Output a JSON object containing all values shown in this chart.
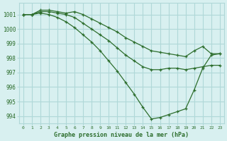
{
  "title": "Graphe pression niveau de la mer (hPa)",
  "bg_color": "#d8f0f0",
  "grid_color": "#b0d8d8",
  "line_color": "#2d6e2d",
  "marker_color": "#2d6e2d",
  "ylim": [
    993.5,
    1001.8
  ],
  "yticks": [
    994,
    995,
    996,
    997,
    998,
    999,
    1000,
    1001
  ],
  "xlim": [
    -0.5,
    23.5
  ],
  "xticks": [
    0,
    1,
    2,
    3,
    4,
    5,
    6,
    7,
    8,
    9,
    10,
    11,
    12,
    13,
    14,
    15,
    16,
    17,
    18,
    19,
    20,
    21,
    22,
    23
  ],
  "series": [
    {
      "x": [
        0,
        1,
        2,
        3,
        4,
        5,
        6,
        7,
        8,
        9,
        10,
        11,
        12,
        13,
        14,
        15,
        16,
        17,
        18,
        19,
        20,
        21,
        22,
        23
      ],
      "y": [
        1001.0,
        1001.0,
        1001.3,
        1001.3,
        1001.2,
        1001.1,
        1001.2,
        1001.0,
        1000.7,
        1000.4,
        1000.1,
        999.8,
        999.4,
        999.1,
        998.8,
        998.5,
        998.4,
        998.3,
        998.2,
        998.1,
        998.5,
        998.8,
        998.3,
        998.3
      ]
    },
    {
      "x": [
        0,
        1,
        2,
        3,
        4,
        5,
        6,
        7,
        8,
        9,
        10,
        11,
        12,
        13,
        14,
        15,
        16,
        17,
        18,
        19,
        20,
        21,
        22,
        23
      ],
      "y": [
        1001.0,
        1001.0,
        1001.2,
        1001.2,
        1001.1,
        1001.0,
        1000.8,
        1000.4,
        1000.0,
        999.6,
        999.2,
        998.7,
        998.2,
        997.8,
        997.4,
        997.2,
        997.2,
        997.3,
        997.3,
        997.2,
        997.3,
        997.4,
        997.5,
        997.5
      ]
    },
    {
      "x": [
        0,
        1,
        2,
        3,
        4,
        5,
        6,
        7,
        8,
        9,
        10,
        11,
        12,
        13,
        14,
        15,
        16,
        17,
        18,
        19,
        20,
        21,
        22,
        23
      ],
      "y": [
        1001.0,
        1001.0,
        1001.1,
        1001.0,
        1000.8,
        1000.5,
        1000.1,
        999.6,
        999.1,
        998.5,
        997.8,
        997.1,
        996.3,
        995.5,
        994.6,
        993.8,
        993.9,
        994.1,
        994.3,
        994.5,
        995.8,
        997.3,
        998.2,
        998.3
      ]
    }
  ]
}
